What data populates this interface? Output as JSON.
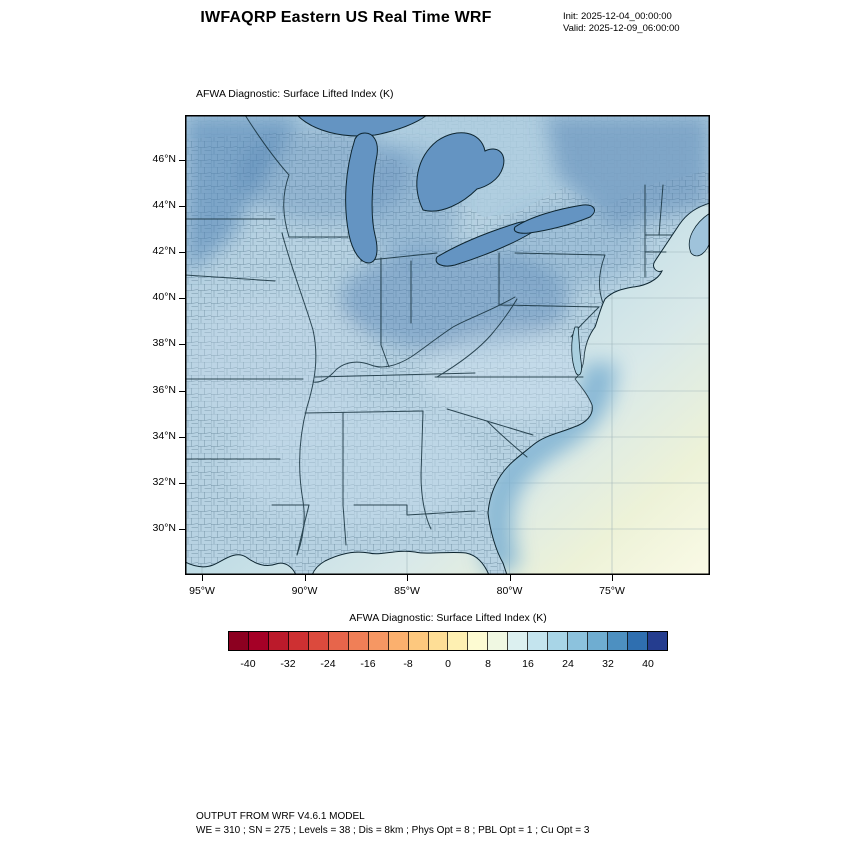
{
  "header": {
    "title": "IWFAQRP Eastern US Real Time WRF",
    "init_label": "Init: 2025-12-04_00:00:00",
    "valid_label": "Valid: 2025-12-09_06:00:00"
  },
  "map": {
    "title": "AFWA Diagnostic: Surface Lifted Index   (K)",
    "lat_tick_labels": [
      "46°N",
      "44°N",
      "42°N",
      "40°N",
      "38°N",
      "36°N",
      "34°N",
      "32°N",
      "30°N"
    ],
    "lon_tick_labels": [
      "95°W",
      "90°W",
      "85°W",
      "80°W",
      "75°W"
    ]
  },
  "colorbar": {
    "title": "AFWA Diagnostic: Surface Lifted Index  (K)",
    "tick_labels": [
      "-40",
      "-32",
      "-24",
      "-16",
      "-8",
      "0",
      "8",
      "16",
      "24",
      "32",
      "40"
    ],
    "segment_colors": [
      "#8c0020",
      "#a50026",
      "#bb1a2b",
      "#ce3032",
      "#dc4a3d",
      "#e7654b",
      "#f07f57",
      "#f69763",
      "#fbb06e",
      "#fdc87e",
      "#fede96",
      "#fef0b2",
      "#fdfbd2",
      "#f0f8e2",
      "#dcf0f0",
      "#c4e4ee",
      "#a8d5e7",
      "#8cc2dd",
      "#6fadd1",
      "#4d90c1",
      "#2f6fb0",
      "#253d8f"
    ]
  },
  "footer": {
    "line1": "OUTPUT FROM WRF V4.6.1 MODEL",
    "line2": "WE = 310 ; SN = 275 ; Levels = 38 ; Dis = 8km ; Phys Opt = 8 ; PBL Opt = 1 ; Cu Opt = 3"
  },
  "chart_data": {
    "type": "heatmap",
    "title": "AFWA Diagnostic: Surface Lifted Index (K)",
    "colorbar_range": [
      -44,
      44
    ],
    "colorbar_ticks": [
      -40,
      -32,
      -24,
      -16,
      -8,
      0,
      8,
      16,
      24,
      32,
      40
    ],
    "lat_ticks_deg_n": [
      46,
      44,
      42,
      40,
      38,
      36,
      34,
      32,
      30
    ],
    "lon_ticks_deg_w": [
      95,
      90,
      85,
      80,
      75
    ],
    "field_summary": "Lifted index roughly 8-32 K over the eastern US land area; darkest blues (24-32) over the upper Midwest, Great Lakes, Ohio Valley and Northeast; lighter blues toward the Southeast; values near 0-8 (pale yellow) over the far southeast Atlantic waters"
  }
}
